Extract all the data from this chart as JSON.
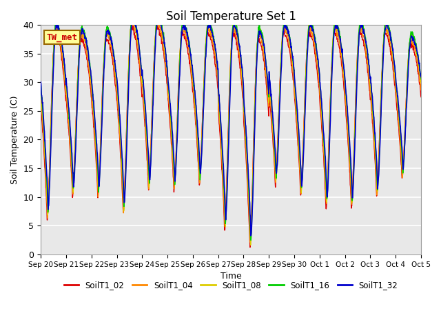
{
  "title": "Soil Temperature Set 1",
  "xlabel": "Time",
  "ylabel": "Soil Temperature (C)",
  "ylim": [
    0,
    40
  ],
  "annotation": "TW_met",
  "annotation_color": "#cc0000",
  "annotation_bg": "#ffff99",
  "annotation_border": "#996600",
  "plot_bg_color": "#e8e8e8",
  "grid_color": "white",
  "series_labels": [
    "SoilT1_02",
    "SoilT1_04",
    "SoilT1_08",
    "SoilT1_16",
    "SoilT1_32"
  ],
  "series_colors": [
    "#dd0000",
    "#ff8800",
    "#ddcc00",
    "#00cc00",
    "#0000cc"
  ],
  "xtick_labels": [
    "Sep 20",
    "Sep 21",
    "Sep 22",
    "Sep 23",
    "Sep 24",
    "Sep 25",
    "Sep 26",
    "Sep 27",
    "Sep 28",
    "Sep 29",
    "Sep 30",
    "Oct 1",
    "Oct 2",
    "Oct 3",
    "Oct 4",
    "Oct 5"
  ],
  "n_days": 15,
  "pts_per_day": 96,
  "day_peaks_base": [
    39,
    38,
    38,
    40,
    40,
    39,
    39,
    39,
    38,
    39,
    39,
    39,
    39,
    39,
    37
  ],
  "day_mins_base": [
    6,
    10,
    10,
    7,
    11,
    11,
    12,
    4,
    1,
    12,
    10,
    8,
    8,
    10,
    13
  ],
  "figsize": [
    6.4,
    4.8
  ],
  "dpi": 100
}
